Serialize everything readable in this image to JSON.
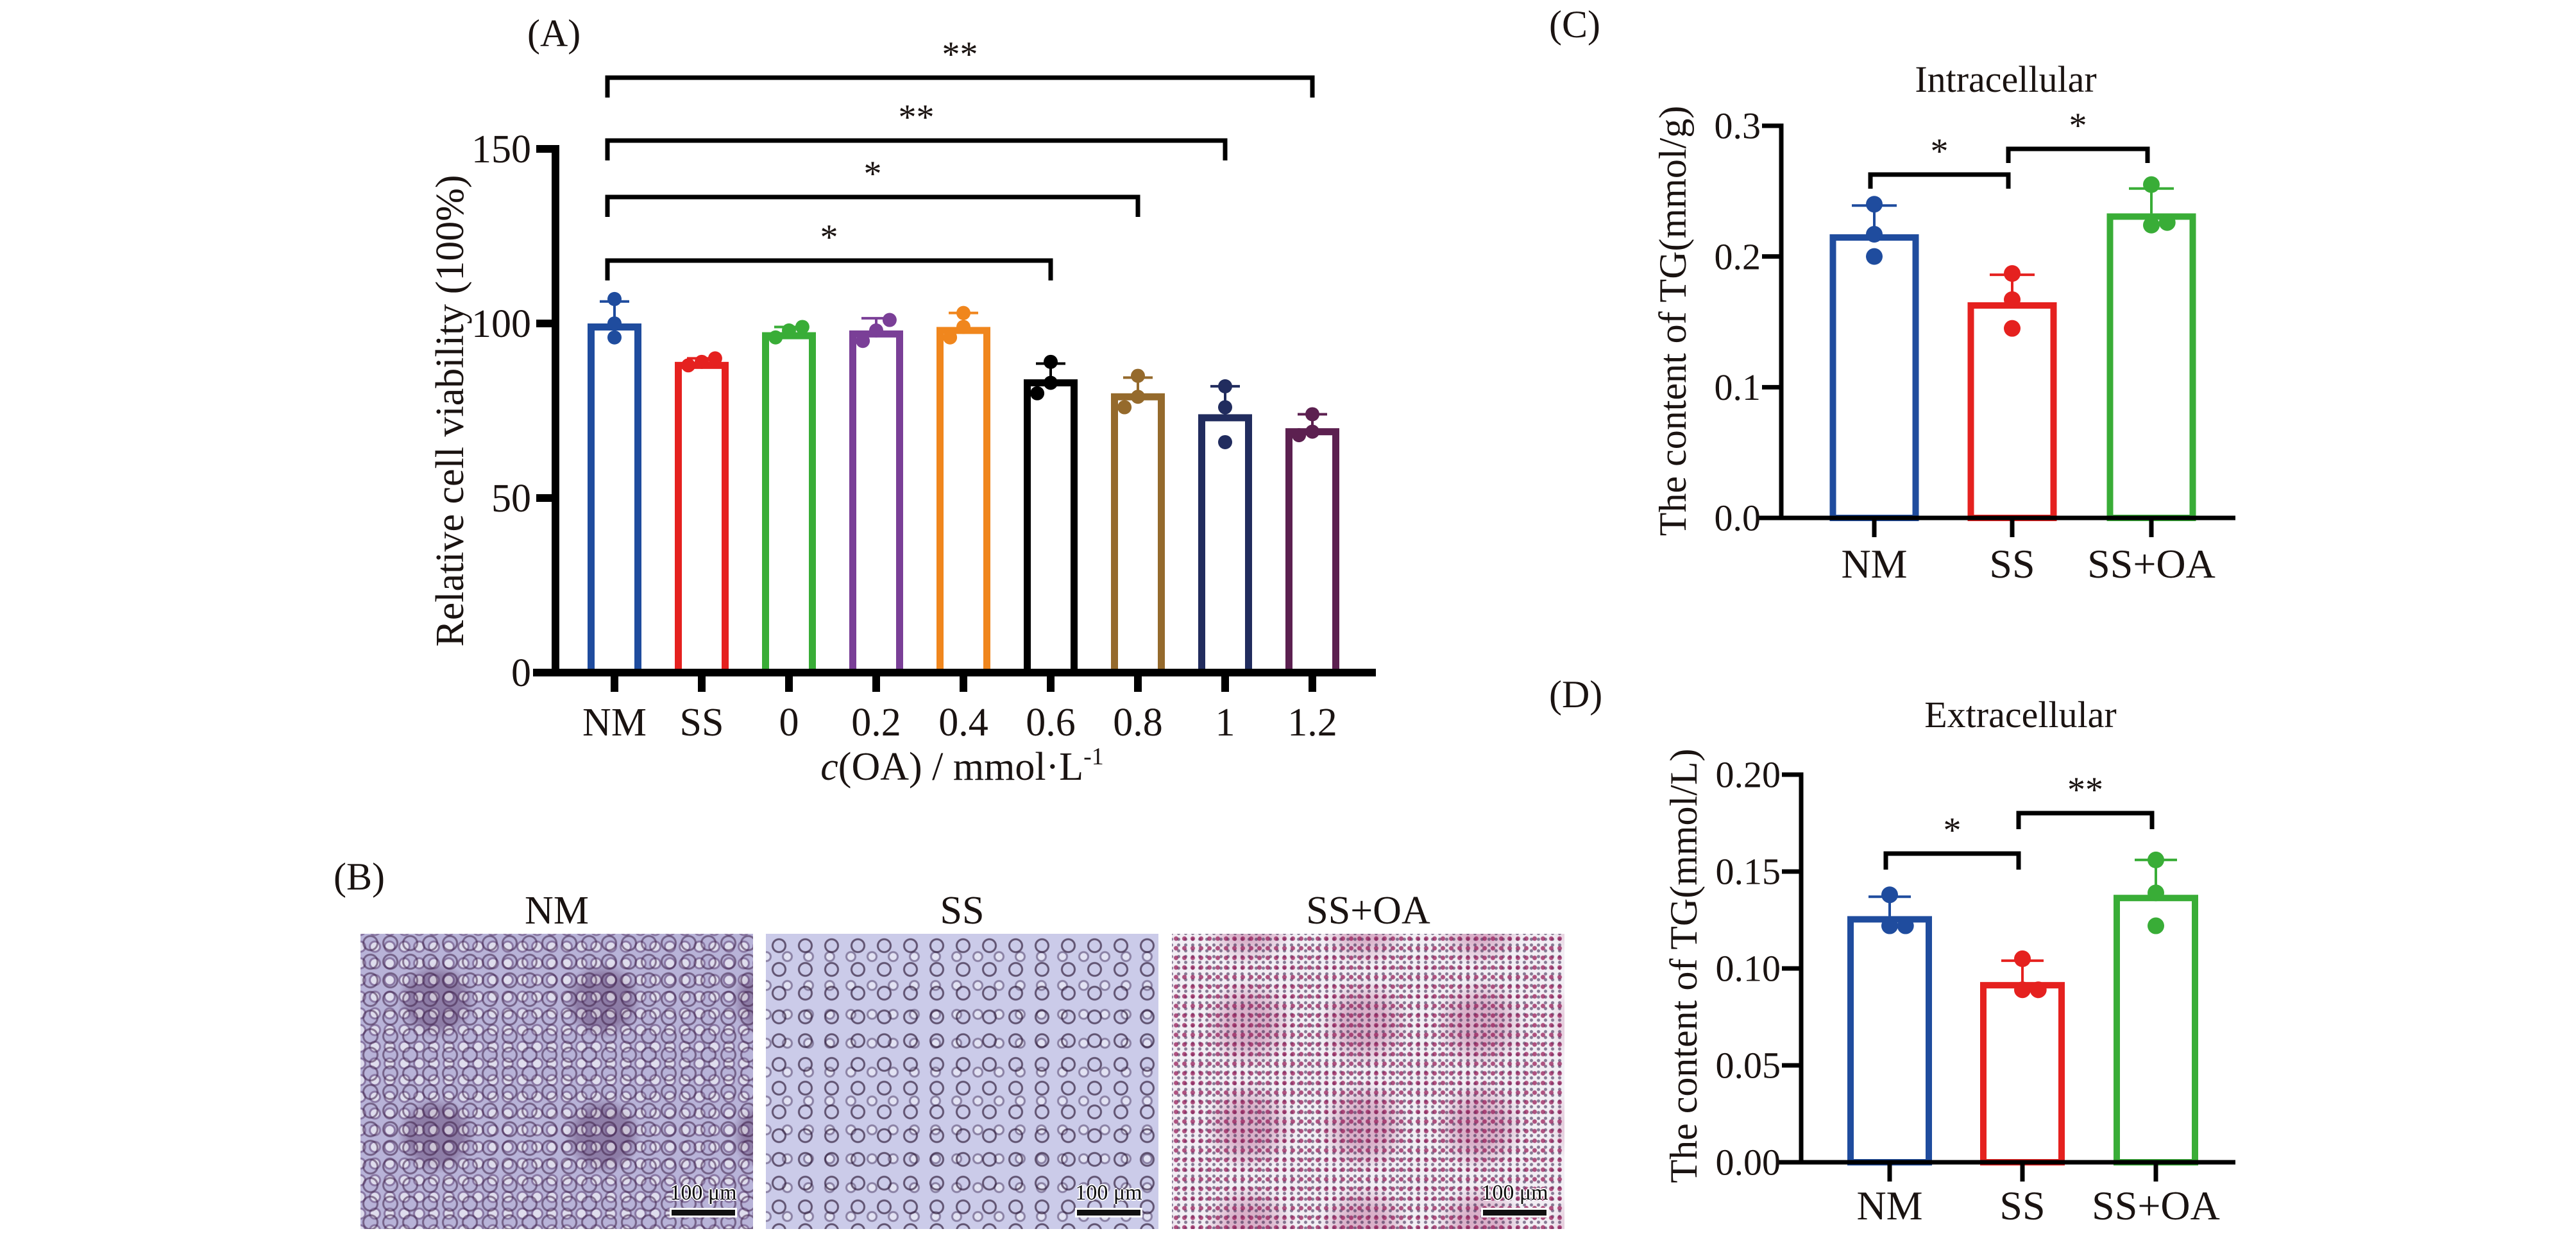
{
  "panel_labels": {
    "a": "(A)",
    "b": "(B)",
    "c": "(C)",
    "d": "(D)"
  },
  "chart_data": [
    {
      "id": "A",
      "type": "bar",
      "title": "",
      "ylabel": "Relative cell viability (100%)",
      "xlabel": {
        "italic": "c",
        "main": "(OA) / mmol·L",
        "sup": "-1"
      },
      "ylim": [
        0,
        150
      ],
      "yticks": [
        0,
        50,
        100,
        150
      ],
      "ytick_labels": [
        "0",
        "50",
        "100",
        "150"
      ],
      "categories": [
        "NM",
        "SS",
        "0",
        "0.2",
        "0.4",
        "0.6",
        "0.8",
        "1",
        "1.2"
      ],
      "values": [
        100,
        89,
        97.5,
        98,
        99,
        84,
        80,
        74,
        70
      ],
      "sd": [
        6.3,
        1,
        1.5,
        3.5,
        4,
        4.5,
        4.5,
        8,
        4
      ],
      "points": [
        [
          107,
          100,
          96
        ],
        [
          88,
          89,
          90
        ],
        [
          96,
          98,
          99
        ],
        [
          95,
          98,
          101
        ],
        [
          96,
          99,
          103
        ],
        [
          80,
          83,
          89
        ],
        [
          76,
          79,
          85
        ],
        [
          66,
          76,
          82
        ],
        [
          68,
          69,
          74
        ]
      ],
      "colors": [
        "#1f4c9e",
        "#e5211f",
        "#39ad37",
        "#7a3f97",
        "#f0861d",
        "#000000",
        "#956a2c",
        "#212c5e",
        "#5c2050"
      ],
      "comparisons": [
        {
          "from": "NM",
          "to": "1.2",
          "label": "**"
        },
        {
          "from": "NM",
          "to": "1",
          "label": "**"
        },
        {
          "from": "NM",
          "to": "0.8",
          "label": "*"
        },
        {
          "from": "NM",
          "to": "0.6",
          "label": "*"
        }
      ]
    },
    {
      "id": "C",
      "type": "bar",
      "title": "Intracellular",
      "ylabel": "The content of TG(mmol/g)",
      "xlabel": "",
      "ylim": [
        0,
        0.3
      ],
      "yticks": [
        0,
        0.1,
        0.2,
        0.3
      ],
      "ytick_labels": [
        "0.0",
        "0.1",
        "0.2",
        "0.3"
      ],
      "categories": [
        "NM",
        "SS",
        "SS+OA"
      ],
      "values": [
        0.217,
        0.165,
        0.233
      ],
      "sd": [
        0.022,
        0.021,
        0.019
      ],
      "points": [
        [
          0.24,
          0.217,
          0.2
        ],
        [
          0.187,
          0.167,
          0.145
        ],
        [
          0.255,
          0.224,
          0.226
        ]
      ],
      "colors": [
        "#1f4c9e",
        "#e5211f",
        "#39ad37"
      ],
      "comparisons": [
        {
          "from": "NM",
          "to": "SS",
          "label": "*"
        },
        {
          "from": "SS",
          "to": "SS+OA",
          "label": "*"
        }
      ]
    },
    {
      "id": "D",
      "type": "bar",
      "title": "Extracellular",
      "ylabel": "The content of TG(mmol/L)",
      "xlabel": "",
      "ylim": [
        0,
        0.2
      ],
      "yticks": [
        0,
        0.05,
        0.1,
        0.15,
        0.2
      ],
      "ytick_labels": [
        "0.00",
        "0.05",
        "0.10",
        "0.15",
        "0.20"
      ],
      "categories": [
        "NM",
        "SS",
        "SS+OA"
      ],
      "values": [
        0.127,
        0.093,
        0.138
      ],
      "sd": [
        0.01,
        0.011,
        0.018
      ],
      "points": [
        [
          0.138,
          0.122,
          0.122
        ],
        [
          0.105,
          0.089,
          0.089
        ],
        [
          0.156,
          0.139,
          0.122
        ]
      ],
      "colors": [
        "#1f4c9e",
        "#e5211f",
        "#39ad37"
      ],
      "comparisons": [
        {
          "from": "NM",
          "to": "SS",
          "label": "*"
        },
        {
          "from": "SS",
          "to": "SS+OA",
          "label": "**"
        }
      ]
    }
  ],
  "micrographs": [
    {
      "label": "NM",
      "scale_bar": "100 μm"
    },
    {
      "label": "SS",
      "scale_bar": "100 μm"
    },
    {
      "label": "SS+OA",
      "scale_bar": "100 μm"
    }
  ]
}
